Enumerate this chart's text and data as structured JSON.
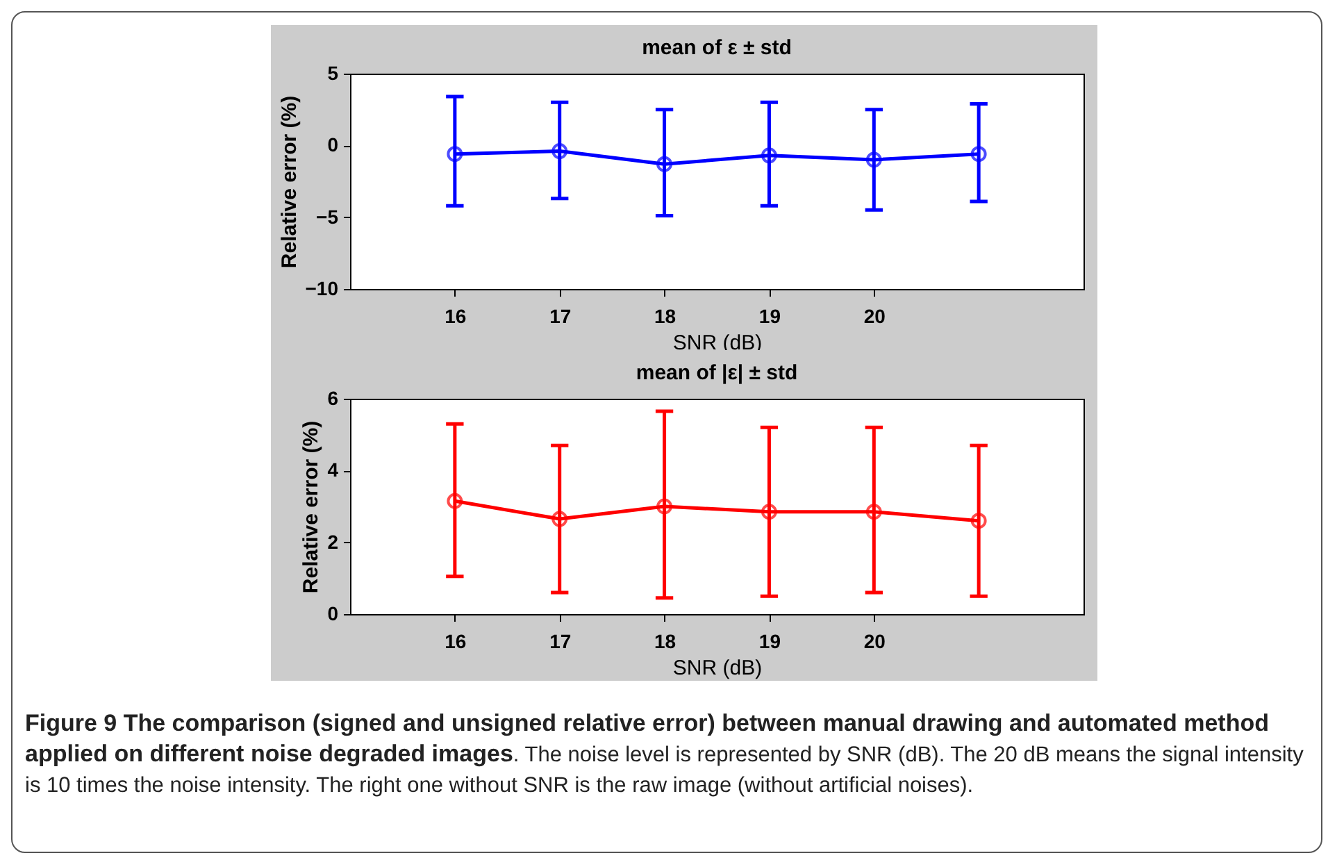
{
  "chart_data": [
    {
      "type": "line",
      "title": "mean of ε ± std",
      "xlabel": "SNR (dB)",
      "ylabel": "Relative error (%)",
      "x": [
        16,
        17,
        18,
        19,
        20,
        21
      ],
      "xlim": [
        15,
        22
      ],
      "xticks": [
        16,
        17,
        18,
        19,
        20
      ],
      "ylim": [
        -10,
        5
      ],
      "yticks": [
        -10,
        -5,
        0,
        5
      ],
      "marker": "circle",
      "grid": false,
      "series": [
        {
          "color": "#0000ff",
          "values": [
            -0.6,
            -0.4,
            -1.3,
            -0.7,
            -1.0,
            -0.6
          ],
          "errors": [
            [
              -4.2,
              3.4
            ],
            [
              -3.7,
              3.0
            ],
            [
              -4.9,
              2.5
            ],
            [
              -4.2,
              3.0
            ],
            [
              -4.5,
              2.5
            ],
            [
              -3.9,
              2.9
            ]
          ]
        }
      ]
    },
    {
      "type": "line",
      "title": "mean of |ε| ± std",
      "xlabel": "SNR (dB)",
      "ylabel": "Relative error (%)",
      "x": [
        16,
        17,
        18,
        19,
        20,
        21
      ],
      "xlim": [
        15,
        22
      ],
      "xticks": [
        16,
        17,
        18,
        19,
        20
      ],
      "ylim": [
        0,
        6
      ],
      "yticks": [
        0,
        2,
        4,
        6
      ],
      "marker": "circle",
      "grid": false,
      "annotations": [
        "Figure 9 The comparison (signed and unsigned relative error) between manual drawing and automated method applied on different noise degraded images",
        ". The noise level is represented by SNR (dB). The 20 dB means the signal intensity is 10 times the noise intensity. The right one without SNR is the raw image (without artificial noises)."
      ],
      "series": [
        {
          "color": "#ff0000",
          "values": [
            3.15,
            2.65,
            3.0,
            2.85,
            2.85,
            2.6
          ],
          "errors": [
            [
              1.05,
              5.3
            ],
            [
              0.6,
              4.7
            ],
            [
              0.45,
              5.65
            ],
            [
              0.5,
              5.2
            ],
            [
              0.6,
              5.2
            ],
            [
              0.5,
              4.7
            ]
          ]
        }
      ]
    }
  ]
}
